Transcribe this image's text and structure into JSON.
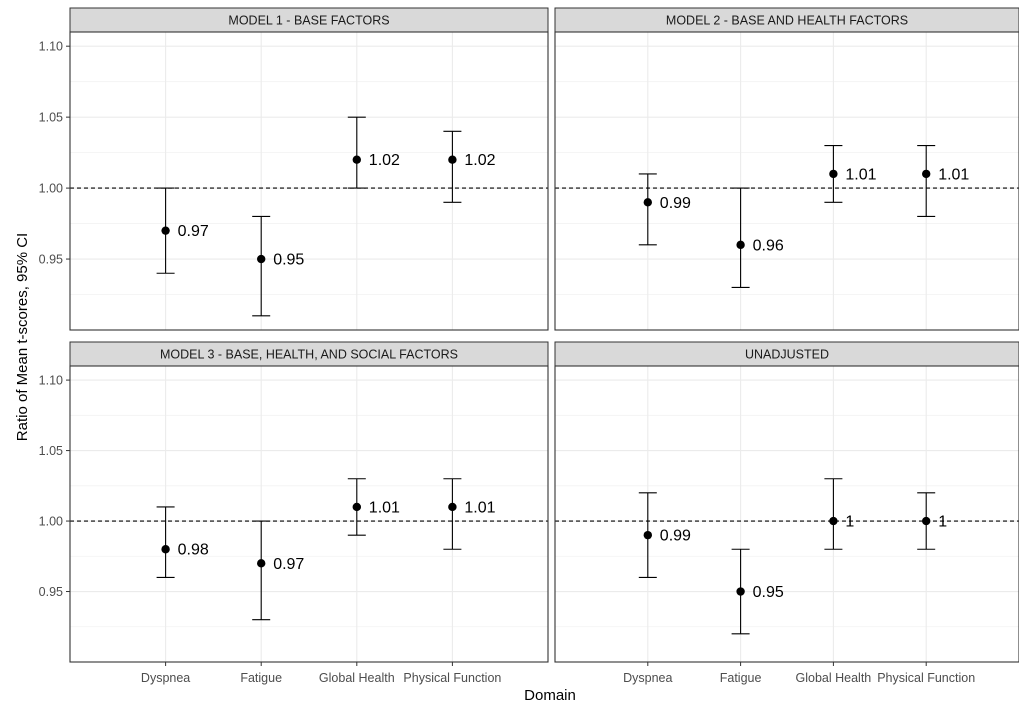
{
  "chart_data": {
    "type": "scatter",
    "xlabel": "Domain",
    "ylabel": "Ratio of Mean t-scores, 95% CI",
    "categories": [
      "Dyspnea",
      "Fatigue",
      "Global Health",
      "Physical Function"
    ],
    "ylim": [
      0.9,
      1.11
    ],
    "yticks": [
      0.95,
      1.0,
      1.05,
      1.1
    ],
    "ytick_labels": [
      "0.95",
      "1.00",
      "1.05",
      "1.10"
    ],
    "reference_line": 1.0,
    "grid": true,
    "panels": [
      {
        "title": "MODEL 1 - BASE FACTORS",
        "points": [
          {
            "category": "Dyspnea",
            "estimate": 0.97,
            "lower": 0.94,
            "upper": 1.0,
            "label": "0.97"
          },
          {
            "category": "Fatigue",
            "estimate": 0.95,
            "lower": 0.91,
            "upper": 0.98,
            "label": "0.95"
          },
          {
            "category": "Global Health",
            "estimate": 1.02,
            "lower": 1.0,
            "upper": 1.05,
            "label": "1.02"
          },
          {
            "category": "Physical Function",
            "estimate": 1.02,
            "lower": 0.99,
            "upper": 1.04,
            "label": "1.02"
          }
        ]
      },
      {
        "title": "MODEL 2 - BASE AND HEALTH FACTORS",
        "points": [
          {
            "category": "Dyspnea",
            "estimate": 0.99,
            "lower": 0.96,
            "upper": 1.01,
            "label": "0.99"
          },
          {
            "category": "Fatigue",
            "estimate": 0.96,
            "lower": 0.93,
            "upper": 1.0,
            "label": "0.96"
          },
          {
            "category": "Global Health",
            "estimate": 1.01,
            "lower": 0.99,
            "upper": 1.03,
            "label": "1.01"
          },
          {
            "category": "Physical Function",
            "estimate": 1.01,
            "lower": 0.98,
            "upper": 1.03,
            "label": "1.01"
          }
        ]
      },
      {
        "title": "MODEL 3 - BASE, HEALTH, AND SOCIAL FACTORS",
        "points": [
          {
            "category": "Dyspnea",
            "estimate": 0.98,
            "lower": 0.96,
            "upper": 1.01,
            "label": "0.98"
          },
          {
            "category": "Fatigue",
            "estimate": 0.97,
            "lower": 0.93,
            "upper": 1.0,
            "label": "0.97"
          },
          {
            "category": "Global Health",
            "estimate": 1.01,
            "lower": 0.99,
            "upper": 1.03,
            "label": "1.01"
          },
          {
            "category": "Physical Function",
            "estimate": 1.01,
            "lower": 0.98,
            "upper": 1.03,
            "label": "1.01"
          }
        ]
      },
      {
        "title": "UNADJUSTED",
        "points": [
          {
            "category": "Dyspnea",
            "estimate": 0.99,
            "lower": 0.96,
            "upper": 1.02,
            "label": "0.99"
          },
          {
            "category": "Fatigue",
            "estimate": 0.95,
            "lower": 0.92,
            "upper": 0.98,
            "label": "0.95"
          },
          {
            "category": "Global Health",
            "estimate": 1.0,
            "lower": 0.98,
            "upper": 1.03,
            "label": "1"
          },
          {
            "category": "Physical Function",
            "estimate": 1.0,
            "lower": 0.98,
            "upper": 1.02,
            "label": "1"
          }
        ]
      }
    ]
  }
}
